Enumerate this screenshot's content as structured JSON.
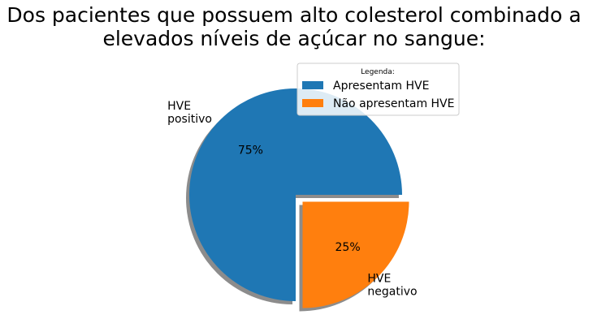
{
  "chart_data": {
    "type": "pie",
    "title": [
      "Dos pacientes que possuem alto colesterol combinado a",
      "elevados níveis de açúcar no sangue:"
    ],
    "slices": [
      {
        "label": [
          "HVE",
          "positivo"
        ],
        "value": 75,
        "pct_text": "75%",
        "color": "#1f77b4",
        "exploded": false
      },
      {
        "label": [
          "HVE",
          "negativo"
        ],
        "value": 25,
        "pct_text": "25%",
        "color": "#ff7f0e",
        "exploded": true
      }
    ],
    "legend": {
      "title": "Legenda:",
      "placement": "top-right",
      "entries": [
        "Apresentam HVE",
        "Não apresentam HVE"
      ]
    },
    "shadow": true,
    "start_angle_deg": 0
  }
}
